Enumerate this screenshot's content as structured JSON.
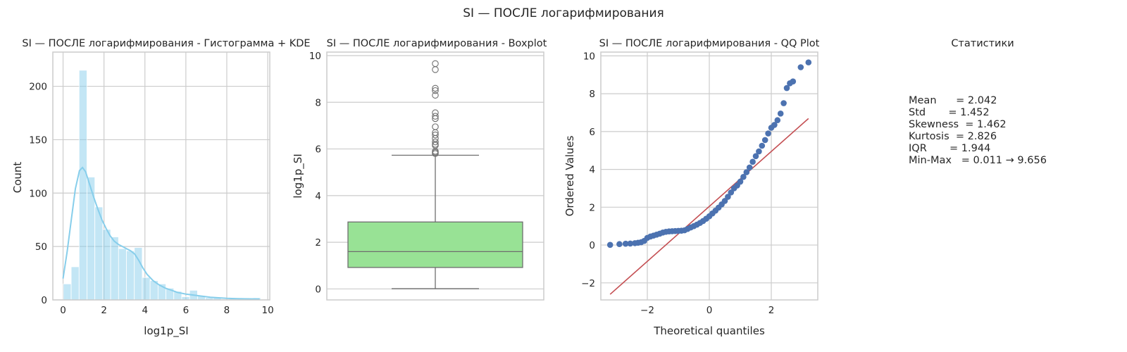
{
  "suptitle": "SI — ПОСЛЕ логарифмирования",
  "colors": {
    "hist_fill": "#87CEEB",
    "kde_line": "#87CEEB",
    "box_fill": "#98E295",
    "box_line": "#6e6e6e",
    "qq_points": "#4C72B0",
    "qq_line": "#C44E52",
    "grid": "#cccccc",
    "spine": "#cccccc"
  },
  "chart_data": [
    {
      "type": "bar",
      "title": "SI — ПОСЛЕ логарифмирования - Гистограмма + KDE",
      "xlabel": "log1p_SI",
      "ylabel": "Count",
      "xlim": [
        -0.5,
        10.1
      ],
      "ylim": [
        0,
        232
      ],
      "xticks": [
        0,
        2,
        4,
        6,
        8,
        10
      ],
      "yticks": [
        0,
        50,
        100,
        150,
        200
      ],
      "grid": true,
      "bin_width": 0.3857,
      "bins": [
        {
          "x0": 0.011,
          "x1": 0.397,
          "count": 15
        },
        {
          "x0": 0.397,
          "x1": 0.783,
          "count": 31
        },
        {
          "x0": 0.783,
          "x1": 1.168,
          "count": 215
        },
        {
          "x0": 1.168,
          "x1": 1.554,
          "count": 115
        },
        {
          "x0": 1.554,
          "x1": 1.94,
          "count": 87
        },
        {
          "x0": 1.94,
          "x1": 2.326,
          "count": 66
        },
        {
          "x0": 2.326,
          "x1": 2.711,
          "count": 59
        },
        {
          "x0": 2.711,
          "x1": 3.097,
          "count": 48
        },
        {
          "x0": 3.097,
          "x1": 3.483,
          "count": 46
        },
        {
          "x0": 3.483,
          "x1": 3.868,
          "count": 49
        },
        {
          "x0": 3.868,
          "x1": 4.254,
          "count": 21
        },
        {
          "x0": 4.254,
          "x1": 4.64,
          "count": 18
        },
        {
          "x0": 4.64,
          "x1": 5.026,
          "count": 15
        },
        {
          "x0": 5.026,
          "x1": 5.411,
          "count": 11
        },
        {
          "x0": 5.411,
          "x1": 5.797,
          "count": 8
        },
        {
          "x0": 5.797,
          "x1": 6.183,
          "count": 3
        },
        {
          "x0": 6.183,
          "x1": 6.568,
          "count": 9
        },
        {
          "x0": 6.568,
          "x1": 6.954,
          "count": 4
        },
        {
          "x0": 6.954,
          "x1": 7.34,
          "count": 2
        },
        {
          "x0": 7.34,
          "x1": 7.726,
          "count": 2
        },
        {
          "x0": 7.726,
          "x1": 8.111,
          "count": 0
        },
        {
          "x0": 8.111,
          "x1": 8.497,
          "count": 1
        },
        {
          "x0": 8.497,
          "x1": 8.883,
          "count": 1
        },
        {
          "x0": 8.883,
          "x1": 9.268,
          "count": 0
        },
        {
          "x0": 9.268,
          "x1": 9.656,
          "count": 2
        }
      ],
      "kde": [
        [
          0.0,
          20
        ],
        [
          0.2,
          45
        ],
        [
          0.4,
          75
        ],
        [
          0.6,
          104
        ],
        [
          0.8,
          121
        ],
        [
          0.95,
          124
        ],
        [
          1.1,
          120
        ],
        [
          1.3,
          108
        ],
        [
          1.5,
          96
        ],
        [
          1.7,
          85
        ],
        [
          1.9,
          75
        ],
        [
          2.1,
          67
        ],
        [
          2.3,
          60
        ],
        [
          2.5,
          55
        ],
        [
          2.7,
          52
        ],
        [
          2.9,
          50
        ],
        [
          3.1,
          48
        ],
        [
          3.3,
          46
        ],
        [
          3.5,
          43
        ],
        [
          3.7,
          37
        ],
        [
          3.9,
          30
        ],
        [
          4.1,
          24
        ],
        [
          4.4,
          18
        ],
        [
          4.7,
          14
        ],
        [
          5.0,
          11
        ],
        [
          5.3,
          9
        ],
        [
          5.6,
          7
        ],
        [
          6.0,
          5.5
        ],
        [
          6.4,
          4.5
        ],
        [
          6.8,
          3.5
        ],
        [
          7.2,
          2.5
        ],
        [
          7.6,
          2
        ],
        [
          8.0,
          1.5
        ],
        [
          8.5,
          1.2
        ],
        [
          9.0,
          1
        ],
        [
          9.6,
          0.8
        ]
      ]
    },
    {
      "type": "box",
      "title": "SI — ПОСЛЕ логарифмирования - Boxplot",
      "ylabel": "log1p_SI",
      "ylim": [
        -0.47,
        10.15
      ],
      "yticks": [
        0,
        2,
        4,
        6,
        8,
        10
      ],
      "grid": true,
      "whisker_low": 0.011,
      "q1": 0.92,
      "median": 1.6,
      "q3": 2.87,
      "whisker_high": 5.73,
      "outliers": [
        5.8,
        5.85,
        5.9,
        6.15,
        6.2,
        6.3,
        6.45,
        6.6,
        6.7,
        6.95,
        7.3,
        7.4,
        7.55,
        8.3,
        8.5,
        8.6,
        9.4,
        9.656
      ]
    },
    {
      "type": "scatter",
      "title": "SI — ПОСЛЕ логарифмирования - QQ Plot",
      "xlabel": "Theoretical quantiles",
      "ylabel": "Ordered Values",
      "xlim": [
        -3.5,
        3.5
      ],
      "ylim": [
        -2.9,
        10.2
      ],
      "xticks": [
        -2,
        0,
        2
      ],
      "yticks": [
        -2,
        0,
        2,
        4,
        6,
        8,
        10
      ],
      "grid": true,
      "fit_line": {
        "slope": 1.452,
        "intercept": 2.042,
        "x_range": [
          -3.2,
          3.2
        ]
      },
      "points": [
        [
          -3.2,
          0.011
        ],
        [
          -2.9,
          0.05
        ],
        [
          -2.7,
          0.07
        ],
        [
          -2.55,
          0.08
        ],
        [
          -2.4,
          0.1
        ],
        [
          -2.3,
          0.12
        ],
        [
          -2.2,
          0.15
        ],
        [
          -2.1,
          0.22
        ],
        [
          -2.0,
          0.38
        ],
        [
          -1.9,
          0.45
        ],
        [
          -1.8,
          0.5
        ],
        [
          -1.7,
          0.55
        ],
        [
          -1.6,
          0.6
        ],
        [
          -1.5,
          0.66
        ],
        [
          -1.4,
          0.7
        ],
        [
          -1.3,
          0.72
        ],
        [
          -1.2,
          0.73
        ],
        [
          -1.1,
          0.74
        ],
        [
          -1.0,
          0.75
        ],
        [
          -0.9,
          0.76
        ],
        [
          -0.8,
          0.78
        ],
        [
          -0.7,
          0.85
        ],
        [
          -0.6,
          0.93
        ],
        [
          -0.5,
          1.0
        ],
        [
          -0.4,
          1.08
        ],
        [
          -0.3,
          1.17
        ],
        [
          -0.2,
          1.27
        ],
        [
          -0.1,
          1.39
        ],
        [
          0.0,
          1.52
        ],
        [
          0.1,
          1.67
        ],
        [
          0.2,
          1.82
        ],
        [
          0.3,
          1.98
        ],
        [
          0.4,
          2.15
        ],
        [
          0.5,
          2.33
        ],
        [
          0.6,
          2.55
        ],
        [
          0.7,
          2.78
        ],
        [
          0.8,
          3.0
        ],
        [
          0.9,
          3.15
        ],
        [
          1.0,
          3.35
        ],
        [
          1.1,
          3.6
        ],
        [
          1.2,
          3.85
        ],
        [
          1.3,
          4.1
        ],
        [
          1.4,
          4.4
        ],
        [
          1.5,
          4.7
        ],
        [
          1.6,
          4.95
        ],
        [
          1.7,
          5.25
        ],
        [
          1.8,
          5.55
        ],
        [
          1.9,
          5.9
        ],
        [
          2.0,
          6.2
        ],
        [
          2.1,
          6.35
        ],
        [
          2.2,
          6.6
        ],
        [
          2.3,
          6.95
        ],
        [
          2.4,
          7.5
        ],
        [
          2.5,
          8.3
        ],
        [
          2.6,
          8.55
        ],
        [
          2.7,
          8.65
        ],
        [
          2.95,
          9.4
        ],
        [
          3.2,
          9.656
        ]
      ]
    }
  ],
  "stats": {
    "title": "Статистики",
    "lines": [
      "Mean      = 2.042",
      "Std       = 1.452",
      "Skewness  = 1.462",
      "Kurtosis  = 2.826",
      "IQR       = 1.944",
      "Min-Max   = 0.011 → 9.656"
    ]
  }
}
